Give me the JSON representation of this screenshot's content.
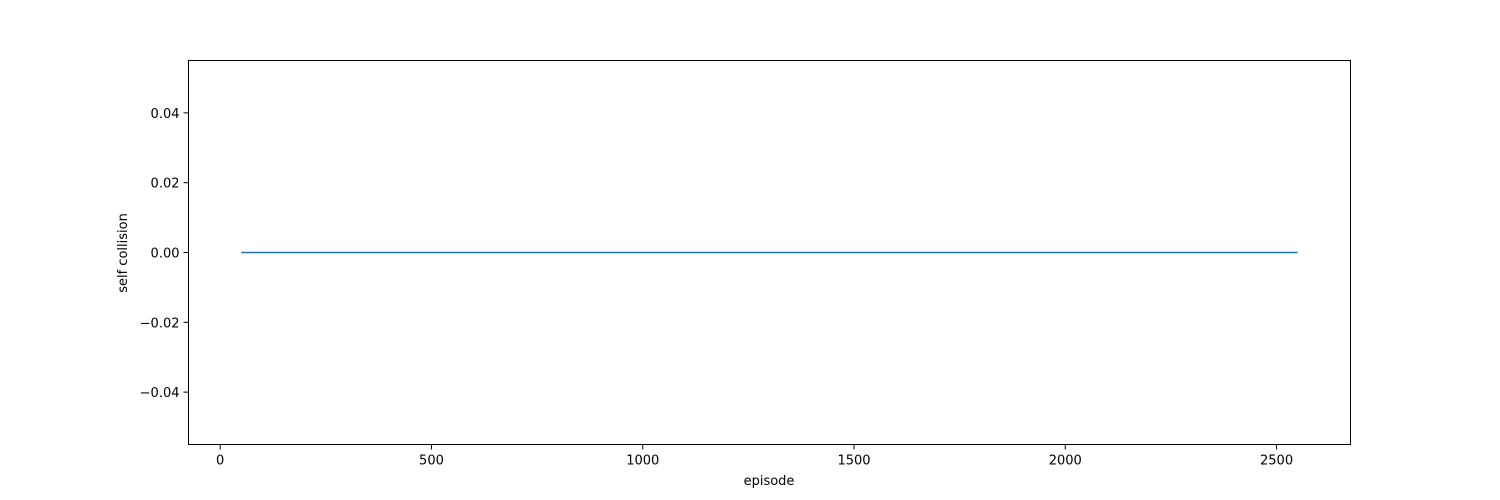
{
  "chart_data": {
    "type": "line",
    "title": "",
    "xlabel": "episode",
    "ylabel": "self collision",
    "xlim": [
      -75,
      2675
    ],
    "ylim": [
      -0.055,
      0.055
    ],
    "x_ticks": [
      0,
      500,
      1000,
      1500,
      2000,
      2500
    ],
    "x_tick_labels": [
      "0",
      "500",
      "1000",
      "1500",
      "2000",
      "2500"
    ],
    "y_ticks": [
      -0.04,
      -0.02,
      0.0,
      0.02,
      0.04
    ],
    "y_tick_labels": [
      "−0.04",
      "−0.02",
      "0.00",
      "0.02",
      "0.04"
    ],
    "grid": false,
    "legend": "none",
    "series": [
      {
        "color": "#1f77b4",
        "x": [
          50,
          2550
        ],
        "y": [
          0,
          0
        ]
      }
    ]
  }
}
